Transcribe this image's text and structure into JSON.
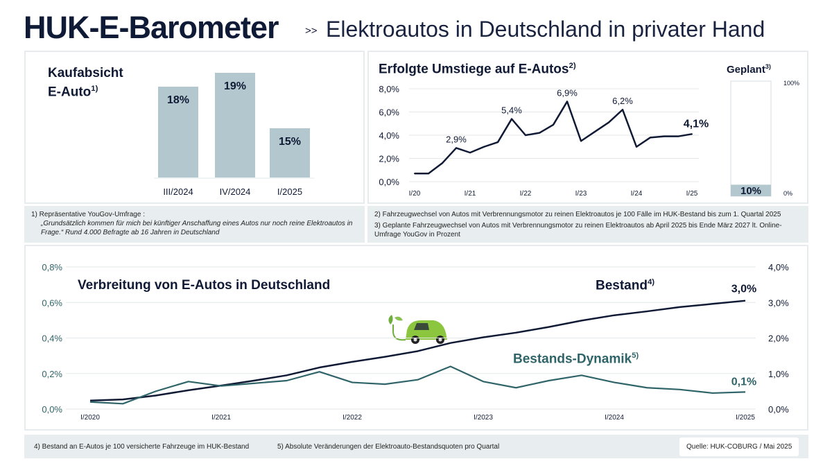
{
  "header": {
    "title": "HUK-E-Barometer",
    "separator": ">>",
    "subtitle": "Elektroautos in Deutschland in privater Hand"
  },
  "kaufabsicht": {
    "title_line1": "Kaufabsicht",
    "title_line2": "E-Auto",
    "footnote_ref": "1)"
  },
  "umstiege": {
    "title": "Erfolgte Umstiege auf E-Autos",
    "footnote_ref": "2)"
  },
  "geplant": {
    "title": "Geplant",
    "footnote_ref": "3)"
  },
  "bottom": {
    "title": "Verbreitung von E-Autos in Deutschland",
    "bestand_label": "Bestand",
    "bestand_ref": "4)",
    "dynamik_label": "Bestands-Dynamik",
    "dynamik_ref": "5)"
  },
  "notes": {
    "n1_line1": "1)  Repräsentative YouGov-Umfrage :",
    "n1_line2": "„Grundsätzlich kommen für mich bei künftiger Anschaffung eines Autos nur noch reine Elektroautos in Frage.“ Rund 4.000 Befragte ab 16 Jahren in Deutschland",
    "n2": "2)  Fahrzeugwechsel von Autos mit Verbrennungsmotor zu reinen Elektroautos je 100 Fälle im HUK-Bestand bis zum 1. Quartal 2025",
    "n3": "3)  Geplante Fahrzeugwechsel von Autos mit Verbrennungsmotor zu reinen Elektroautos ab April 2025 bis Ende März 2027 lt. Online-Umfrage YouGov in Prozent",
    "n4": "4) Bestand an E-Autos je 100 versicherte Fahrzeuge im HUK-Bestand",
    "n5": "5) Absolute Veränderungen der Elektroauto-Bestandsquoten pro Quartal",
    "source": "Quelle: HUK-COBURG / Mai  2025"
  },
  "colors": {
    "navy": "#101a35",
    "bar": "#b2c8ce",
    "teal": "#2f6468",
    "panel_bg": "#e8eef0"
  },
  "icons": [
    "electric-car-icon"
  ],
  "chart_data": [
    {
      "type": "bar",
      "title": "Kaufabsicht E-Auto",
      "categories": [
        "III/2024",
        "IV/2024",
        "I/2025"
      ],
      "values": [
        18,
        19,
        15
      ],
      "labels": [
        "18%",
        "19%",
        "15%"
      ]
    },
    {
      "type": "line",
      "title": "Erfolgte Umstiege auf E-Autos",
      "ylim": [
        0,
        8
      ],
      "yticks": [
        "0,0%",
        "2,0%",
        "4,0%",
        "6,0%",
        "8,0%"
      ],
      "xticks": [
        "I/20",
        "I/21",
        "I/22",
        "I/23",
        "I/24",
        "I/25"
      ],
      "values": [
        0.7,
        0.7,
        1.6,
        2.9,
        2.5,
        3.0,
        3.4,
        5.4,
        4.0,
        4.2,
        4.9,
        6.9,
        3.5,
        4.3,
        5.1,
        6.2,
        3.0,
        3.8,
        3.9,
        3.9,
        4.1
      ],
      "annotations": [
        {
          "index": 3,
          "text": "2,9%"
        },
        {
          "index": 7,
          "text": "5,4%"
        },
        {
          "index": 11,
          "text": "6,9%"
        },
        {
          "index": 15,
          "text": "6,2%"
        },
        {
          "index": 20,
          "text": "4,1%"
        }
      ],
      "grid": true
    },
    {
      "type": "bar",
      "title": "Geplant",
      "value": 10,
      "label": "10%",
      "ylim": [
        0,
        100
      ],
      "yticks": [
        "0%",
        "100%"
      ]
    },
    {
      "type": "line",
      "title": "Verbreitung von E-Autos in Deutschland",
      "xticks": [
        "I/2020",
        "I/2021",
        "I/2022",
        "I/2023",
        "I/2024",
        "I/2025"
      ],
      "left_axis": {
        "ylim": [
          0,
          0.8
        ],
        "ticks": [
          "0,0%",
          "0,2%",
          "0,4%",
          "0,6%",
          "0,8%"
        ]
      },
      "right_axis": {
        "ylim": [
          0,
          4
        ],
        "ticks": [
          "0,0%",
          "1,0%",
          "2,0%",
          "3,0%",
          "4,0%"
        ]
      },
      "series": [
        {
          "name": "Bestand",
          "axis": "right",
          "end_label": "3,0%",
          "values": [
            0.24,
            0.27,
            0.38,
            0.53,
            0.66,
            0.8,
            0.95,
            1.17,
            1.33,
            1.47,
            1.63,
            1.86,
            2.02,
            2.15,
            2.31,
            2.49,
            2.64,
            2.75,
            2.87,
            2.96,
            3.05
          ]
        },
        {
          "name": "Bestands-Dynamik",
          "axis": "left",
          "end_label": "0,1%",
          "values": [
            0.04,
            0.03,
            0.1,
            0.155,
            0.13,
            0.145,
            0.16,
            0.21,
            0.15,
            0.14,
            0.165,
            0.24,
            0.155,
            0.12,
            0.16,
            0.19,
            0.15,
            0.12,
            0.11,
            0.09,
            0.096
          ]
        }
      ],
      "grid": true
    }
  ]
}
